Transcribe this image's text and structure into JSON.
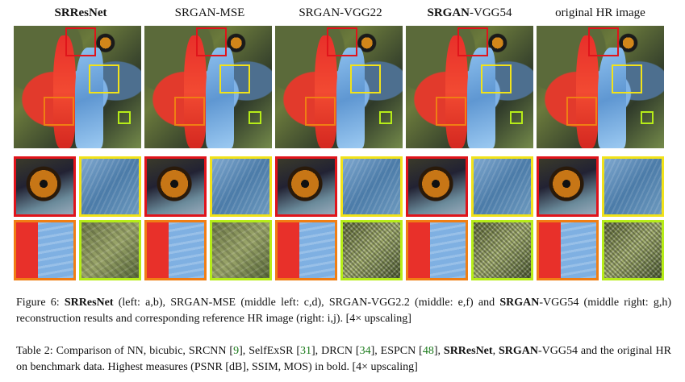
{
  "columns": [
    {
      "bold": "SRResNet",
      "rest": ""
    },
    {
      "bold": "",
      "rest": "SRGAN-MSE"
    },
    {
      "bold": "",
      "rest": "SRGAN-VGG22"
    },
    {
      "bold": "SRGAN",
      "rest": "-VGG54"
    },
    {
      "bold": "",
      "rest": "original HR image"
    }
  ],
  "figure_caption": {
    "label": "Figure 6:",
    "b1": "SRResNet",
    "t1": " (left: a,b), SRGAN-MSE (middle left: c,d), SRGAN-VGG2.2 (middle: e,f) and ",
    "b2": "SRGAN",
    "t2": "-VGG54 (middle right: g,h) reconstruction results and corresponding reference HR image (right: i,j). [4× upscaling]"
  },
  "table_caption": {
    "label": "Table 2:",
    "t1": " Comparison of NN, bicubic, SRCNN [",
    "c1": "9",
    "t2": "], SelfExSR [",
    "c2": "31",
    "t3": "], DRCN [",
    "c3": "34",
    "t4": "], ESPCN [",
    "c4": "48",
    "t5": "], ",
    "b1": "SRResNet",
    "t6": ", ",
    "b2": "SRGAN",
    "t7": "-VGG54 and the original HR on benchmark data. Highest measures (PSNR [dB], SSIM, MOS) in bold. [4× upscaling]"
  },
  "colors": {
    "box_red": "#e0141b",
    "box_yellow": "#f1e21a",
    "box_orange": "#f07e14",
    "box_lime": "#b6ec18",
    "citation": "#1a7a1a"
  }
}
